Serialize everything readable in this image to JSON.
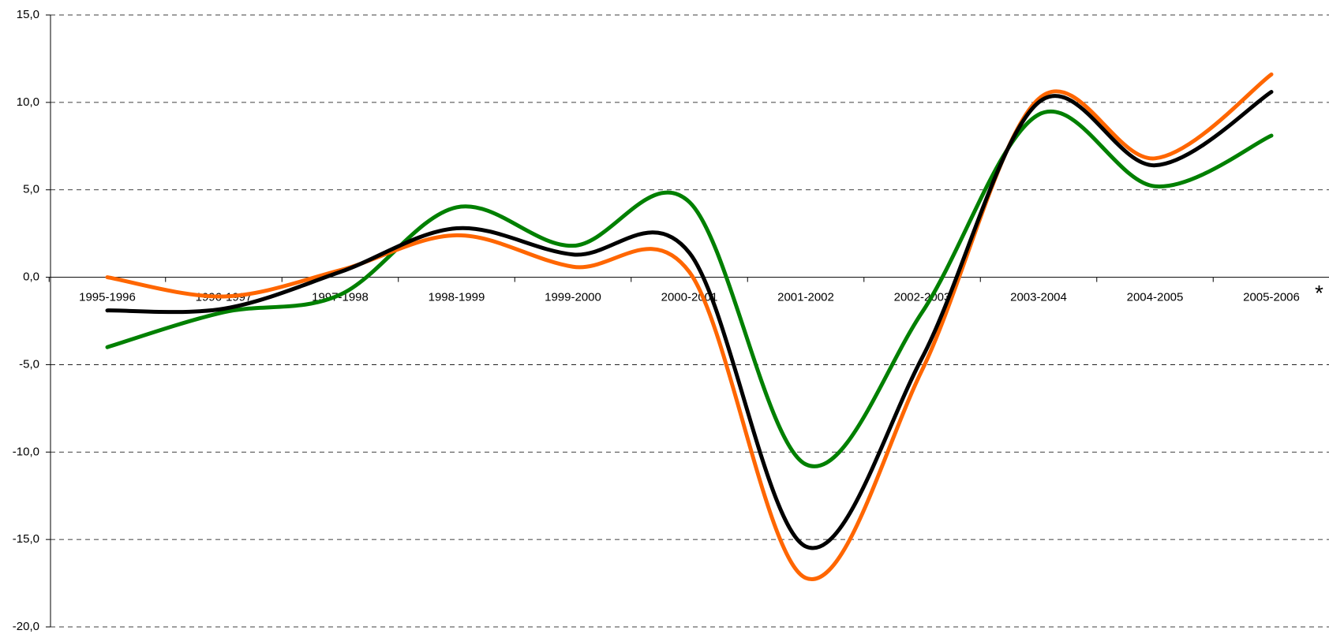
{
  "chart_data": {
    "type": "line",
    "categories": [
      "1995-1996",
      "1996-1997",
      "1997-1998",
      "1998-1999",
      "1999-2000",
      "2000-2001",
      "2001-2002",
      "2002-2003",
      "2003-2004",
      "2004-2005",
      "2005-2006"
    ],
    "series": [
      {
        "color": "#008000",
        "values": [
          -4.0,
          -2.0,
          -1.0,
          4.0,
          1.8,
          4.3,
          -10.7,
          -2.0,
          9.3,
          5.2,
          8.1
        ]
      },
      {
        "color": "#ff6600",
        "values": [
          0.0,
          -1.1,
          0.4,
          2.4,
          0.6,
          0.3,
          -17.2,
          -5.3,
          10.2,
          6.8,
          11.6
        ]
      },
      {
        "color": "#000000",
        "values": [
          -1.9,
          -1.8,
          0.3,
          2.8,
          1.3,
          1.4,
          -15.4,
          -4.6,
          10.0,
          6.4,
          10.6
        ]
      }
    ],
    "annotations": [
      "*",
      "*"
    ],
    "ylim": [
      -20,
      15
    ],
    "yticks": [
      {
        "value": -20,
        "label": "-20,0"
      },
      {
        "value": -15,
        "label": "-15,0"
      },
      {
        "value": -10,
        "label": "-10,0"
      },
      {
        "value": -5,
        "label": "-5,0"
      },
      {
        "value": 0,
        "label": "0,0"
      },
      {
        "value": 5,
        "label": "5,0"
      },
      {
        "value": 10,
        "label": "10,0"
      },
      {
        "value": 15,
        "label": "15,0"
      }
    ],
    "grid": true
  }
}
